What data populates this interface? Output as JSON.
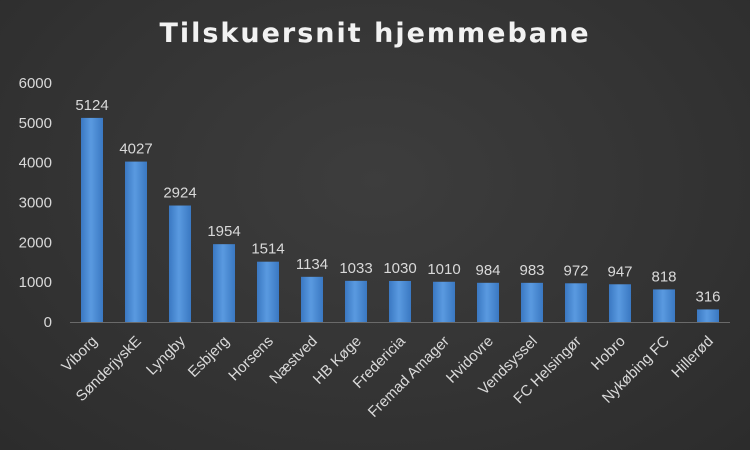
{
  "chart_data": {
    "type": "bar",
    "title": "Tilskuersnit hjemmebane",
    "xlabel": "",
    "ylabel": "",
    "categories": [
      "Viborg",
      "SønderjyskE",
      "Lyngby",
      "Esbjerg",
      "Horsens",
      "Næstved",
      "HB Køge",
      "Fredericia",
      "Fremad Amager",
      "Hvidovre",
      "Vendsyssel",
      "FC Helsingør",
      "Hobro",
      "Nykøbing FC",
      "Hillerød"
    ],
    "values": [
      5124,
      4027,
      2924,
      1954,
      1514,
      1134,
      1033,
      1030,
      1010,
      984,
      983,
      972,
      947,
      818,
      316
    ],
    "ylim": [
      0,
      6000
    ],
    "yticks": [
      0,
      1000,
      2000,
      3000,
      4000,
      5000,
      6000
    ],
    "grid": false,
    "legend": "none",
    "bar_color": "#4f8fd6",
    "background_color": "#333333",
    "text_color": "#d9d9d9"
  }
}
